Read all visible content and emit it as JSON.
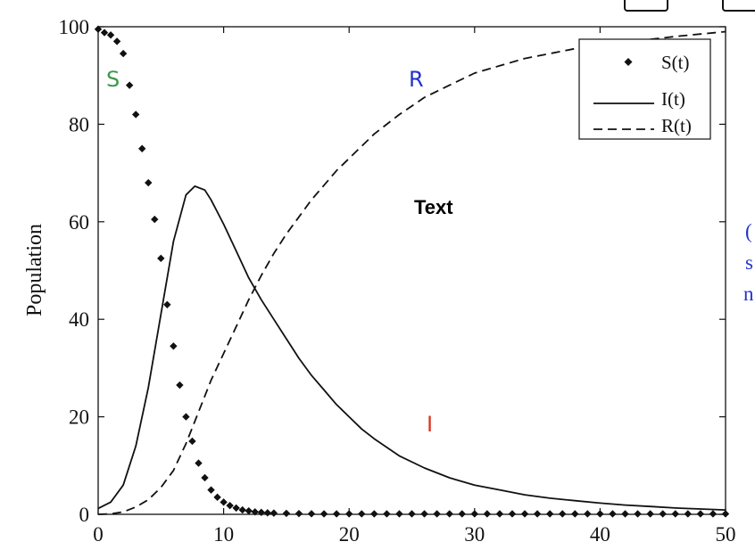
{
  "chart_data": {
    "type": "line",
    "ylabel": "Population",
    "xlim": [
      0,
      50
    ],
    "ylim": [
      0,
      100
    ],
    "xticks": [
      0,
      10,
      20,
      30,
      40,
      50
    ],
    "yticks": [
      0,
      20,
      40,
      60,
      80,
      100
    ],
    "grid": false,
    "legend_position": "top-right",
    "series": [
      {
        "name": "S(t)",
        "style": "diamond-markers",
        "x": [
          0,
          0.5,
          1,
          1.5,
          2,
          2.5,
          3,
          3.5,
          4,
          4.5,
          5,
          5.5,
          6,
          6.5,
          7,
          7.5,
          8,
          8.5,
          9,
          9.5,
          10,
          10.5,
          11,
          11.5,
          12,
          12.5,
          13,
          13.5,
          14,
          15,
          16,
          17,
          18,
          19,
          20,
          21,
          22,
          23,
          24,
          25,
          26,
          27,
          28,
          29,
          30,
          31,
          32,
          33,
          34,
          35,
          36,
          37,
          38,
          39,
          40,
          41,
          42,
          43,
          44,
          45,
          46,
          47,
          48,
          49,
          50
        ],
        "values": [
          99.5,
          98.8,
          98.3,
          97,
          94.5,
          88,
          82,
          75,
          68,
          60.5,
          52.5,
          43,
          34.5,
          26.5,
          20,
          15,
          10.5,
          7.5,
          5,
          3.5,
          2.5,
          1.8,
          1.3,
          0.9,
          0.7,
          0.5,
          0.4,
          0.3,
          0.25,
          0.2,
          0.15,
          0.12,
          0.1,
          0.1,
          0.1,
          0.1,
          0.1,
          0.1,
          0.1,
          0.1,
          0.1,
          0.1,
          0.1,
          0.1,
          0.1,
          0.1,
          0.1,
          0.1,
          0.1,
          0.1,
          0.1,
          0.1,
          0.1,
          0.1,
          0.1,
          0.1,
          0.1,
          0.1,
          0.1,
          0.1,
          0.1,
          0.1,
          0.1,
          0.1,
          0.1
        ]
      },
      {
        "name": "I(t)",
        "style": "solid",
        "x": [
          0,
          1,
          2,
          3,
          4,
          5,
          6,
          7,
          7.7,
          8.5,
          9,
          10,
          11,
          12,
          13,
          14,
          15,
          16,
          17,
          18,
          19,
          20,
          21,
          22,
          24,
          26,
          28,
          30,
          32,
          34,
          36,
          38,
          40,
          42,
          44,
          46,
          48,
          50
        ],
        "values": [
          1.2,
          2.5,
          6,
          14,
          26,
          41,
          56,
          65.5,
          67.3,
          66.5,
          64.5,
          59.5,
          54,
          48.5,
          44,
          40,
          36,
          32,
          28.5,
          25.5,
          22.5,
          20,
          17.5,
          15.5,
          12,
          9.5,
          7.5,
          6,
          5,
          4,
          3.3,
          2.8,
          2.3,
          1.9,
          1.6,
          1.3,
          1.1,
          0.9
        ]
      },
      {
        "name": "R(t)",
        "style": "dashed",
        "x": [
          0,
          1,
          2,
          3,
          4,
          5,
          6,
          7,
          8,
          9,
          10,
          11,
          12,
          13,
          14,
          15,
          16,
          17,
          18,
          19,
          20,
          22,
          24,
          26,
          28,
          30,
          32,
          34,
          36,
          38,
          40,
          42,
          44,
          46,
          48,
          50
        ],
        "values": [
          0,
          0.1,
          0.5,
          1.5,
          3,
          5.5,
          9,
          14.5,
          21,
          27.5,
          33,
          38.5,
          44,
          49,
          53.5,
          57.5,
          61,
          64.5,
          67.5,
          70.5,
          73,
          78,
          82,
          85.5,
          88,
          90.5,
          92,
          93.5,
          94.5,
          95.5,
          96.2,
          96.8,
          97.4,
          98,
          98.5,
          99
        ]
      }
    ]
  },
  "annotations": {
    "s_label": "S",
    "r_label": "R",
    "i_label": "I",
    "text_label": "Text",
    "side_line1": "(",
    "side_line2": "s",
    "side_line3": "n"
  },
  "colors": {
    "s_label": "#3a9a4a",
    "r_label": "#2233cc",
    "i_label": "#dd3322",
    "side_text": "#2233cc",
    "ink": "#111111"
  }
}
